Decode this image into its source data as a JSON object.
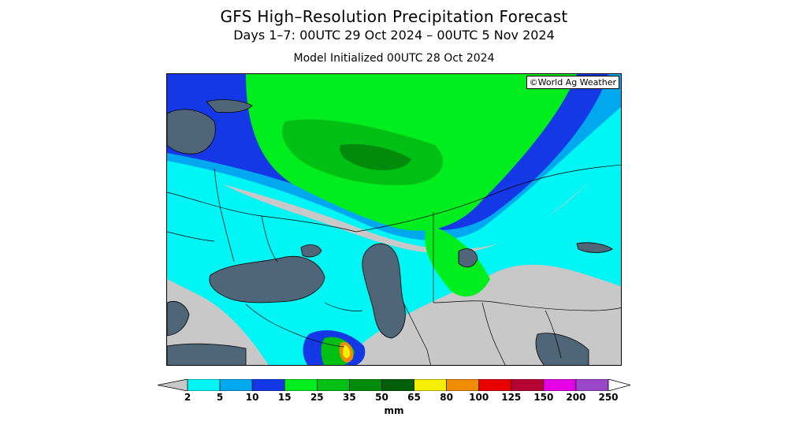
{
  "title": "GFS High–Resolution Precipitation Forecast",
  "subtitle": "Days 1–7: 00UTC 29 Oct 2024 – 00UTC 5 Nov 2024",
  "init_line": "Model Initialized 00UTC 28 Oct 2024",
  "credit": "©World Ag Weather",
  "legend": {
    "units": "mm",
    "ticks": [
      "2",
      "5",
      "10",
      "15",
      "25",
      "35",
      "50",
      "65",
      "80",
      "100",
      "125",
      "150",
      "200",
      "250"
    ],
    "colors": [
      "#00f5f5",
      "#00a8f0",
      "#1438e6",
      "#00ee1e",
      "#00c014",
      "#008c0a",
      "#005f08",
      "#f6f000",
      "#f08c00",
      "#e80000",
      "#b40032",
      "#e600e6",
      "#9a46c8"
    ],
    "below_min_color": "#c8c8c8"
  },
  "map": {
    "region": "Eastern Europe, Black Sea, Caspian Sea and western Kazakhstan",
    "water_color": "#4f6578",
    "land_no_precip_color": "#c8c8c8"
  }
}
